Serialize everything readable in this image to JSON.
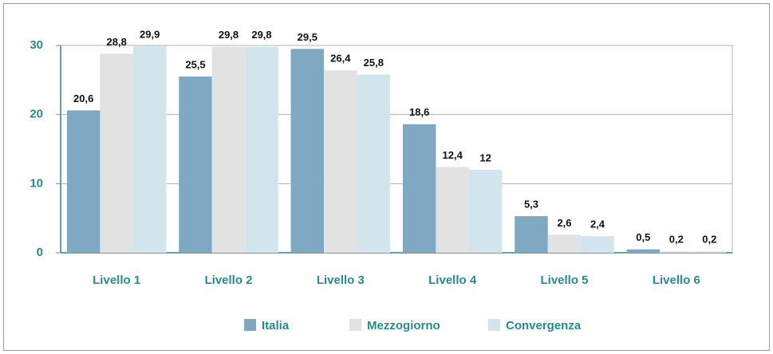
{
  "chart_data": {
    "type": "bar",
    "categories": [
      "Livello 1",
      "Livello 2",
      "Livello 3",
      "Livello 4",
      "Livello 5",
      "Livello 6"
    ],
    "series": [
      {
        "name": "Italia",
        "color": "#7fa9c3",
        "values": [
          20.6,
          25.5,
          29.5,
          18.6,
          5.3,
          0.5
        ],
        "value_labels": [
          "20,6",
          "25,5",
          "29,5",
          "18,6",
          "5,3",
          "0,5"
        ]
      },
      {
        "name": "Mezzogiorno",
        "color": "#e2e2e2",
        "values": [
          28.8,
          29.8,
          26.4,
          12.4,
          2.6,
          0.2
        ],
        "value_labels": [
          "28,8",
          "29,8",
          "26,4",
          "12,4",
          "2,6",
          "0,2"
        ]
      },
      {
        "name": "Convergenza",
        "color": "#d2e5ef",
        "values": [
          29.9,
          29.8,
          25.8,
          12,
          2.4,
          0.2
        ],
        "value_labels": [
          "29,9",
          "29,8",
          "25,8",
          "12",
          "2,4",
          "0,2"
        ]
      }
    ],
    "ylim": [
      0,
      30
    ],
    "yticks": [
      0,
      10,
      20,
      30
    ],
    "grid": true,
    "legend": "bottom"
  }
}
